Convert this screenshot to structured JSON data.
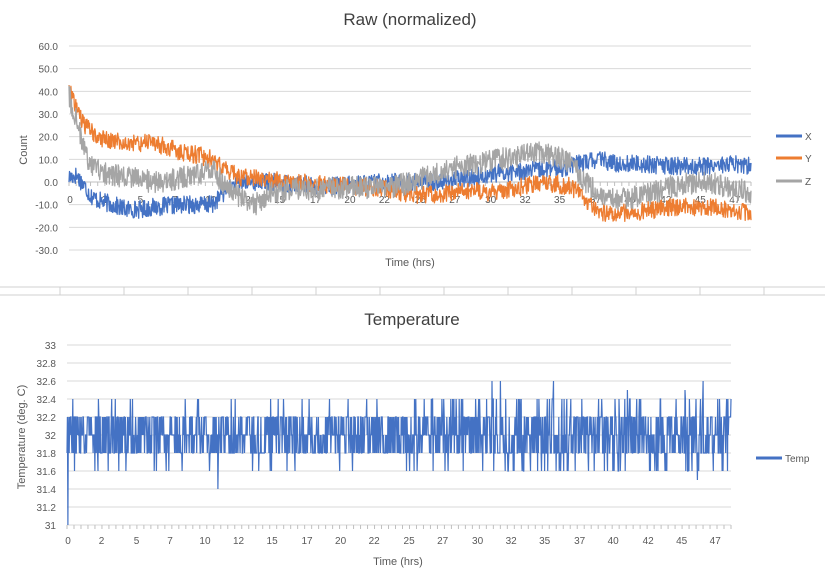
{
  "colors": {
    "x": "#4472C4",
    "y": "#ED7D31",
    "z": "#A5A5A5",
    "temp": "#4472C4",
    "grid": "#d9d9d9",
    "axis_text": "#595959",
    "title_text": "#404040"
  },
  "chart_data": [
    {
      "type": "line",
      "title": "Raw (normalized)",
      "xlabel": "Time (hrs)",
      "ylabel": "Count",
      "xlim": [
        0,
        47.5
      ],
      "ylim": [
        -30,
        60
      ],
      "y_ticks": [
        "60.0",
        "50.0",
        "40.0",
        "30.0",
        "20.0",
        "10.0",
        "0.0",
        "-10.0",
        "-20.0",
        "-30.0"
      ],
      "x_ticks": [
        "0",
        "2",
        "5",
        "7",
        "10",
        "12",
        "15",
        "17",
        "20",
        "22",
        "25",
        "27",
        "30",
        "32",
        "35",
        "37",
        "40",
        "42",
        "45",
        "47"
      ],
      "grid": true,
      "legend_position": "right",
      "series": [
        {
          "name": "X",
          "color": "#4472C4",
          "x": [
            0,
            0.5,
            1,
            1.5,
            2,
            3,
            4,
            5,
            6,
            8,
            10,
            11,
            12,
            14,
            16,
            18,
            20,
            22,
            24,
            26,
            28,
            30,
            32,
            34,
            35,
            36,
            37,
            38,
            40,
            42,
            44,
            46,
            47.5
          ],
          "values": [
            2,
            3,
            -1,
            -6,
            -8,
            -10,
            -12,
            -12,
            -11,
            -10,
            -10,
            -3,
            0,
            0,
            -1,
            -2,
            -1,
            0,
            0,
            0,
            2,
            4,
            5,
            6,
            7,
            9,
            10,
            8,
            8,
            7,
            7,
            8,
            7
          ],
          "noise": 4
        },
        {
          "name": "Y",
          "color": "#ED7D31",
          "x": [
            0,
            0.3,
            1,
            2,
            3,
            4,
            5,
            6,
            7,
            8,
            9,
            10,
            11,
            12,
            14,
            16,
            18,
            20,
            22,
            24,
            26,
            28,
            30,
            31,
            33,
            34,
            35,
            36,
            37,
            38,
            40,
            42,
            44,
            46,
            47.5
          ],
          "values": [
            42,
            36,
            25,
            20,
            18,
            17,
            17,
            17,
            15,
            13,
            12,
            10,
            5,
            2,
            1,
            0,
            -1,
            -2,
            -3,
            -6,
            -5,
            -4,
            -5,
            -3,
            0,
            -1,
            -2,
            -8,
            -13,
            -14,
            -13,
            -11,
            -11,
            -12,
            -14
          ],
          "noise": 4
        },
        {
          "name": "Z",
          "color": "#A5A5A5",
          "x": [
            0,
            0.5,
            1,
            1.5,
            2,
            3,
            4,
            6,
            8,
            10,
            11,
            12,
            13,
            14,
            16,
            18,
            20,
            22,
            24,
            26,
            28,
            30,
            32,
            33,
            34,
            35,
            36,
            37,
            38,
            40,
            42,
            44,
            46,
            47.5
          ],
          "values": [
            38,
            28,
            15,
            8,
            5,
            3,
            2,
            0,
            2,
            5,
            -2,
            -7,
            -10,
            -5,
            -3,
            -3,
            -2,
            -3,
            0,
            5,
            8,
            10,
            12,
            13,
            11,
            8,
            0,
            -5,
            -8,
            -6,
            -2,
            0,
            -2,
            -5
          ],
          "noise": 5
        }
      ]
    },
    {
      "type": "line",
      "title": "Temperature",
      "xlabel": "Time (hrs)",
      "ylabel": "Temperature (deg. C)",
      "xlim": [
        0,
        47.5
      ],
      "ylim": [
        31,
        33
      ],
      "y_ticks": [
        "33",
        "32.8",
        "32.6",
        "32.4",
        "32.2",
        "32",
        "31.8",
        "31.6",
        "31.4",
        "31.2",
        "31"
      ],
      "x_ticks": [
        "0",
        "2",
        "5",
        "7",
        "10",
        "12",
        "15",
        "17",
        "20",
        "22",
        "25",
        "27",
        "30",
        "32",
        "35",
        "37",
        "40",
        "42",
        "45",
        "47"
      ],
      "grid": true,
      "legend_position": "right",
      "series": [
        {
          "name": "Temp",
          "color": "#4472C4",
          "base": 32.0,
          "levels": [
            31.8,
            32.0,
            32.2
          ],
          "spikes_high": [
            [
              30.4,
              32.6
            ],
            [
              31.0,
              32.6
            ],
            [
              34.8,
              32.6
            ],
            [
              40.1,
              32.5
            ],
            [
              44.2,
              32.5
            ],
            [
              45.5,
              32.6
            ]
          ],
          "spikes_low": [
            [
              0.05,
              31.0
            ],
            [
              10.8,
              31.4
            ],
            [
              45.1,
              31.5
            ],
            [
              44.5,
              31.6
            ],
            [
              24.5,
              31.6
            ]
          ]
        }
      ]
    }
  ]
}
